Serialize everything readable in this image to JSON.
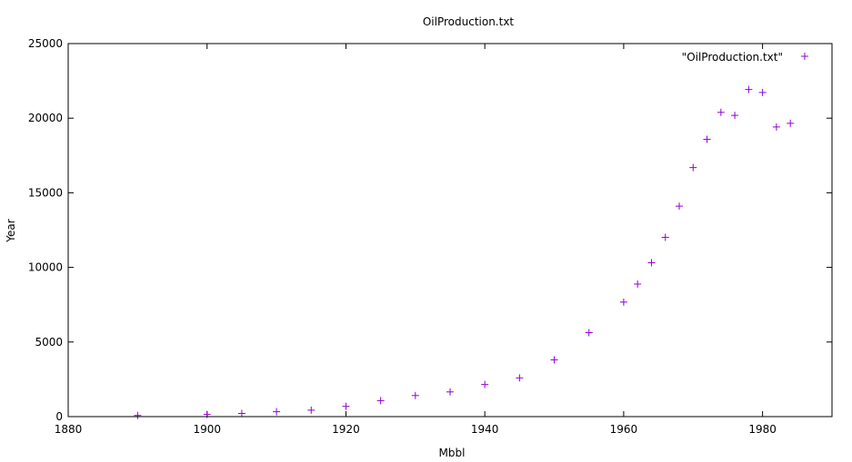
{
  "chart_data": {
    "type": "scatter",
    "title": "OilProduction.txt",
    "xlabel": "Mbbl",
    "ylabel": "Year",
    "xlim": [
      1880,
      1990
    ],
    "ylim": [
      0,
      25000
    ],
    "x_ticks": [
      "1880",
      "1900",
      "1920",
      "1940",
      "1960",
      "1980"
    ],
    "y_ticks": [
      "0",
      "5000",
      "10000",
      "15000",
      "20000",
      "25000"
    ],
    "grid": false,
    "legend_position": "top-right",
    "series": [
      {
        "name": "\"OilProduction.txt\"",
        "color": "#9400d3",
        "marker": "plus",
        "x": [
          1890,
          1900,
          1905,
          1910,
          1915,
          1920,
          1925,
          1930,
          1935,
          1940,
          1945,
          1950,
          1955,
          1960,
          1962,
          1964,
          1966,
          1968,
          1970,
          1972,
          1974,
          1976,
          1978,
          1980,
          1982,
          1984
        ],
        "y": [
          77,
          149,
          215,
          328,
          432,
          689,
          1069,
          1412,
          1655,
          2150,
          2595,
          3803,
          5626,
          7674,
          8882,
          10310,
          12016,
          14104,
          16690,
          18584,
          20389,
          20188,
          21922,
          21722,
          19411,
          19656
        ]
      }
    ]
  }
}
